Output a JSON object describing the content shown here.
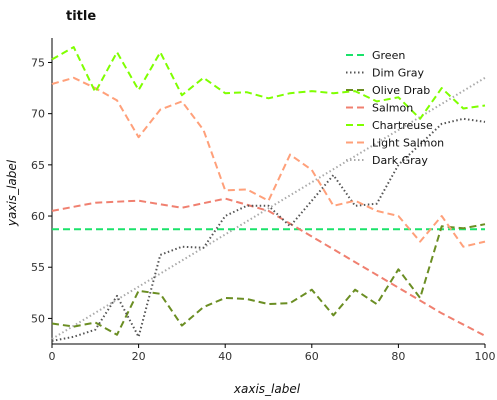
{
  "chart_data": {
    "type": "line",
    "title": "title",
    "xlabel": "xaxis_label",
    "ylabel": "yaxis_label",
    "xlim": [
      0,
      100
    ],
    "ylim": [
      47.5,
      77
    ],
    "xticks": [
      0,
      20,
      40,
      60,
      80,
      100
    ],
    "yticks": [
      50,
      55,
      60,
      65,
      70,
      75
    ],
    "grid": false,
    "legend_position": "inside-right",
    "series": [
      {
        "name": "Green",
        "color": "#1ae26a",
        "dash": "dashed",
        "x": [
          0,
          100
        ],
        "y": [
          58.7,
          58.7
        ]
      },
      {
        "name": "Dim Gray",
        "color": "#555555",
        "dash": "dotted",
        "x": [
          0,
          5,
          10,
          15,
          20,
          25,
          30,
          35,
          40,
          45,
          50,
          55,
          60,
          65,
          70,
          75,
          80,
          85,
          90,
          95,
          100
        ],
        "y": [
          47.8,
          48.2,
          48.9,
          52.2,
          48.2,
          56.2,
          57.0,
          56.9,
          60.0,
          61.0,
          61.0,
          59.0,
          61.5,
          64.0,
          61.0,
          61.2,
          65.0,
          67.0,
          69.0,
          69.5,
          69.2
        ]
      },
      {
        "name": "Olive Drab",
        "color": "#6b8e23",
        "dash": "dashed",
        "x": [
          0,
          5,
          10,
          15,
          20,
          25,
          30,
          35,
          40,
          45,
          50,
          55,
          60,
          65,
          70,
          75,
          80,
          85,
          90,
          95,
          100
        ],
        "y": [
          49.5,
          49.2,
          49.6,
          48.4,
          52.7,
          52.4,
          49.3,
          51.1,
          52.0,
          51.9,
          51.4,
          51.5,
          52.8,
          50.3,
          52.8,
          51.4,
          54.8,
          52.0,
          59.0,
          58.8,
          59.2
        ]
      },
      {
        "name": "Salmon",
        "color": "#f08070",
        "dash": "dashed",
        "x": [
          0,
          10,
          20,
          30,
          40,
          50,
          60,
          70,
          80,
          90,
          100
        ],
        "y": [
          60.5,
          61.3,
          61.5,
          60.8,
          61.7,
          60.5,
          58.0,
          55.5,
          53.0,
          50.5,
          48.3
        ]
      },
      {
        "name": "Chartreuse",
        "color": "#7fff00",
        "dash": "dashed",
        "x": [
          0,
          5,
          10,
          15,
          20,
          25,
          30,
          35,
          40,
          45,
          50,
          55,
          60,
          65,
          70,
          75,
          80,
          85,
          90,
          95,
          100
        ],
        "y": [
          75.3,
          76.5,
          72.1,
          76.0,
          72.3,
          76.0,
          71.8,
          73.5,
          72.0,
          72.1,
          71.5,
          72.0,
          72.2,
          72.0,
          72.2,
          71.2,
          71.6,
          69.5,
          72.5,
          70.5,
          70.8
        ]
      },
      {
        "name": "Light Salmon",
        "color": "#ffa07a",
        "dash": "dashed",
        "x": [
          0,
          5,
          10,
          15,
          20,
          25,
          30,
          35,
          40,
          45,
          50,
          55,
          60,
          65,
          70,
          75,
          80,
          85,
          90,
          95,
          100
        ],
        "y": [
          72.9,
          73.5,
          72.5,
          71.3,
          67.7,
          70.4,
          71.2,
          68.4,
          62.5,
          62.6,
          61.5,
          66.0,
          64.5,
          61.0,
          61.5,
          60.5,
          60.0,
          57.5,
          60.0,
          57.0,
          57.5
        ]
      },
      {
        "name": "Dark Gray",
        "color": "#aaaaaa",
        "dash": "dotted",
        "x": [
          0,
          100
        ],
        "y": [
          48.0,
          73.5
        ]
      }
    ]
  }
}
